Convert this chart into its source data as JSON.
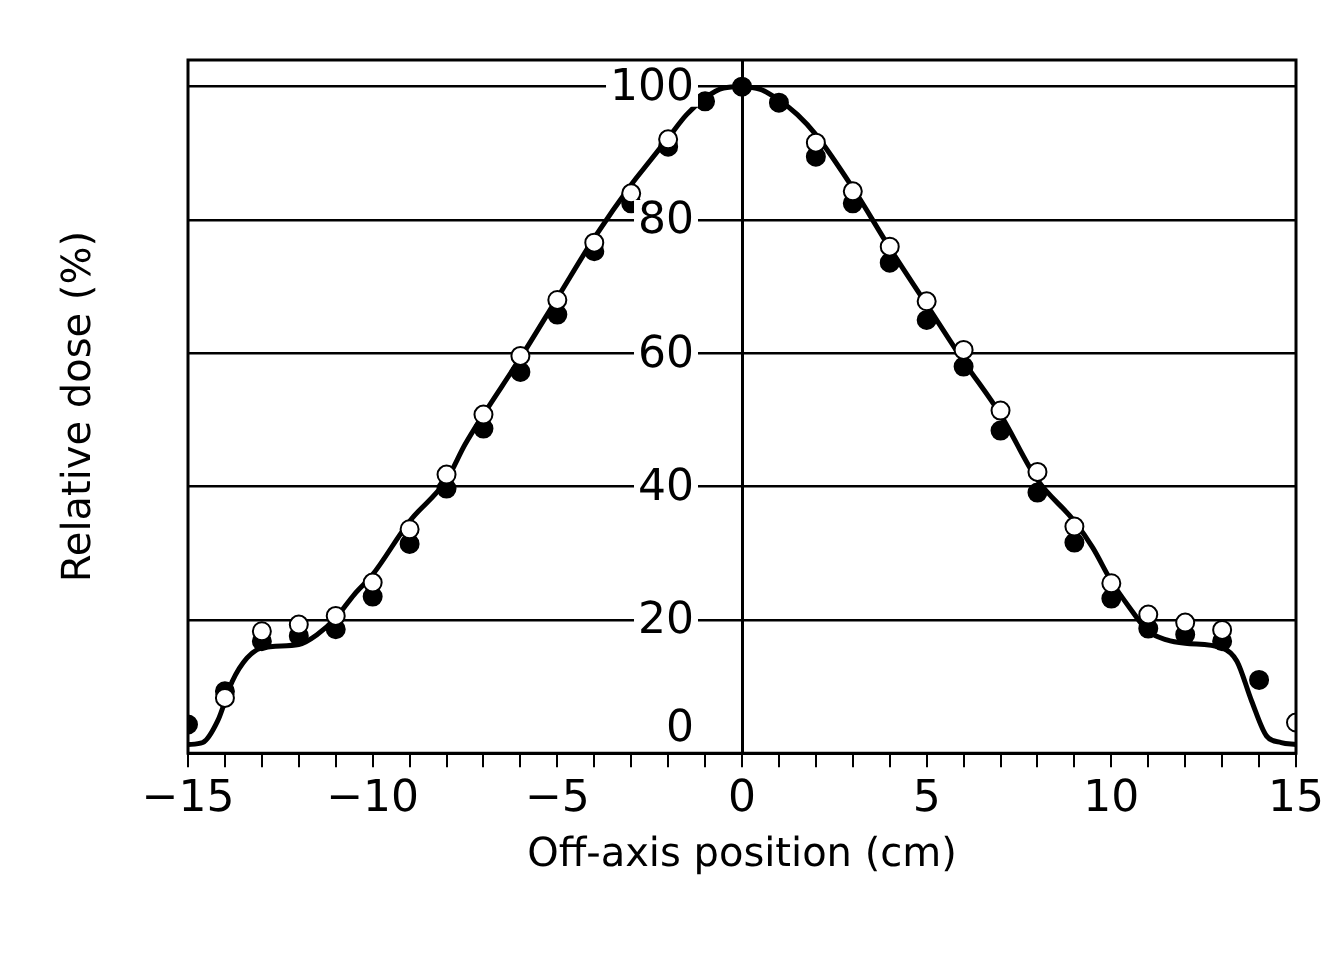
{
  "chart_data": {
    "type": "scatter",
    "xlabel": "Off-axis position (cm)",
    "ylabel": "Relative dose (%)",
    "xlim": [
      -15,
      15
    ],
    "xticks": [
      -15,
      {
        "value": -14,
        "label": null
      },
      {
        "value": -13,
        "label": null
      },
      {
        "value": -12,
        "label": null
      },
      {
        "value": -11,
        "label": null
      },
      {
        "value": -10,
        "label": "−10"
      },
      {
        "value": -9,
        "label": null
      },
      {
        "value": -8,
        "label": null
      },
      {
        "value": -7,
        "label": null
      },
      {
        "value": -6,
        "label": null
      },
      {
        "value": -5,
        "label": "−5"
      },
      {
        "value": -4,
        "label": null
      },
      {
        "value": -3,
        "label": null
      },
      {
        "value": -2,
        "label": null
      },
      {
        "value": -1,
        "label": null
      },
      0,
      {
        "value": 1,
        "label": null
      },
      {
        "value": 2,
        "label": null
      },
      {
        "value": 3,
        "label": null
      },
      {
        "value": 4,
        "label": null
      },
      5,
      {
        "value": 6,
        "label": null
      },
      {
        "value": 7,
        "label": null
      },
      {
        "value": 8,
        "label": null
      },
      {
        "value": 9,
        "label": null
      },
      10,
      {
        "value": 11,
        "label": null
      },
      {
        "value": 12,
        "label": null
      },
      {
        "value": 13,
        "label": null
      },
      {
        "value": 14,
        "label": null
      },
      15
    ],
    "ylim": [
      0,
      104
    ],
    "yticks": [
      0,
      20,
      40,
      60,
      80,
      100
    ],
    "grid": "y",
    "marker": "circle",
    "series": [
      {
        "type": "line",
        "color": "#000000",
        "marker": "none",
        "x": [
          -15,
          -14.6,
          -14.2,
          -13.8,
          -13.4,
          -13,
          -12,
          -11.5,
          -11,
          -10.5,
          -10,
          -9,
          -8,
          -7.5,
          -7,
          -6,
          -5,
          -4,
          -3,
          -2.5,
          -2,
          -1.5,
          -1,
          -0.5,
          0,
          0.5,
          1,
          1.5,
          2,
          3,
          4,
          5,
          6,
          7,
          8,
          9,
          9.5,
          10,
          10.5,
          11,
          11.5,
          12,
          13,
          13.4,
          13.8,
          14.2,
          14.6,
          15
        ],
        "values": [
          1.3,
          1.6,
          4.8,
          10.8,
          14.3,
          15.8,
          16.3,
          17.8,
          20.3,
          23.8,
          26.8,
          34.8,
          41,
          46.3,
          50.8,
          59.3,
          68.3,
          77.3,
          85.3,
          88.8,
          92.3,
          95.8,
          98.3,
          99.8,
          100,
          99.6,
          98,
          95.8,
          92.8,
          84.8,
          75.8,
          67.3,
          58.8,
          50.8,
          41,
          34.8,
          30.8,
          25.8,
          21.8,
          18.3,
          17,
          16.5,
          15.8,
          13.8,
          7.8,
          2.6,
          1.6,
          1.3
        ]
      },
      {
        "color": "#000000",
        "x": [
          -15,
          -14,
          -13,
          -12,
          -11,
          -10,
          -9,
          -8,
          -7,
          -6,
          -5,
          -4,
          -3,
          -2,
          -1,
          0,
          1,
          2,
          3,
          4,
          5,
          6,
          7,
          8,
          9,
          10,
          11,
          12,
          13,
          14
        ],
        "values": [
          4.3,
          9.3,
          16.8,
          17.6,
          18.6,
          23.5,
          31.4,
          39.7,
          48.7,
          57.2,
          65.8,
          75.3,
          82.5,
          91,
          97.8,
          100,
          97.6,
          89.5,
          82.5,
          73.6,
          65,
          58,
          48.4,
          39.1,
          31.6,
          23.2,
          18.7,
          17.8,
          16.8,
          11
        ]
      },
      {
        "color": "#ffffff",
        "x": [
          -14,
          -13,
          -12,
          -11,
          -10,
          -9,
          -8,
          -7,
          -6,
          -5,
          -4,
          -3,
          -2,
          2,
          3,
          4,
          5,
          6,
          7,
          8,
          9,
          10,
          11,
          12,
          13,
          15
        ],
        "values": [
          8.3,
          18.3,
          19.3,
          20.6,
          25.6,
          33.6,
          41.8,
          50.8,
          59.6,
          68,
          76.6,
          84,
          92.1,
          91.6,
          84.3,
          76,
          67.8,
          60.5,
          51.4,
          42.2,
          34,
          25.5,
          20.8,
          19.6,
          18.5,
          4.6
        ]
      }
    ]
  }
}
